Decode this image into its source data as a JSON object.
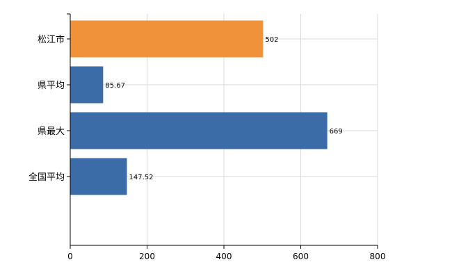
{
  "chart_data": {
    "type": "bar",
    "orientation": "horizontal",
    "categories": [
      "松江市",
      "県平均",
      "県最大",
      "全国平均"
    ],
    "values": [
      502,
      85.67,
      669,
      147.52
    ],
    "value_labels": [
      "502",
      "85.67",
      "669",
      "147.52"
    ],
    "bar_colors": [
      "#f0923a",
      "#3c6ca8",
      "#3c6ca8",
      "#3c6ca8"
    ],
    "xlim": [
      0,
      800
    ],
    "xticks": [
      0,
      200,
      400,
      600,
      800
    ],
    "xtick_labels": [
      "0",
      "200",
      "400",
      "600",
      "800"
    ],
    "grid": true,
    "title": "",
    "xlabel": "",
    "ylabel": ""
  }
}
